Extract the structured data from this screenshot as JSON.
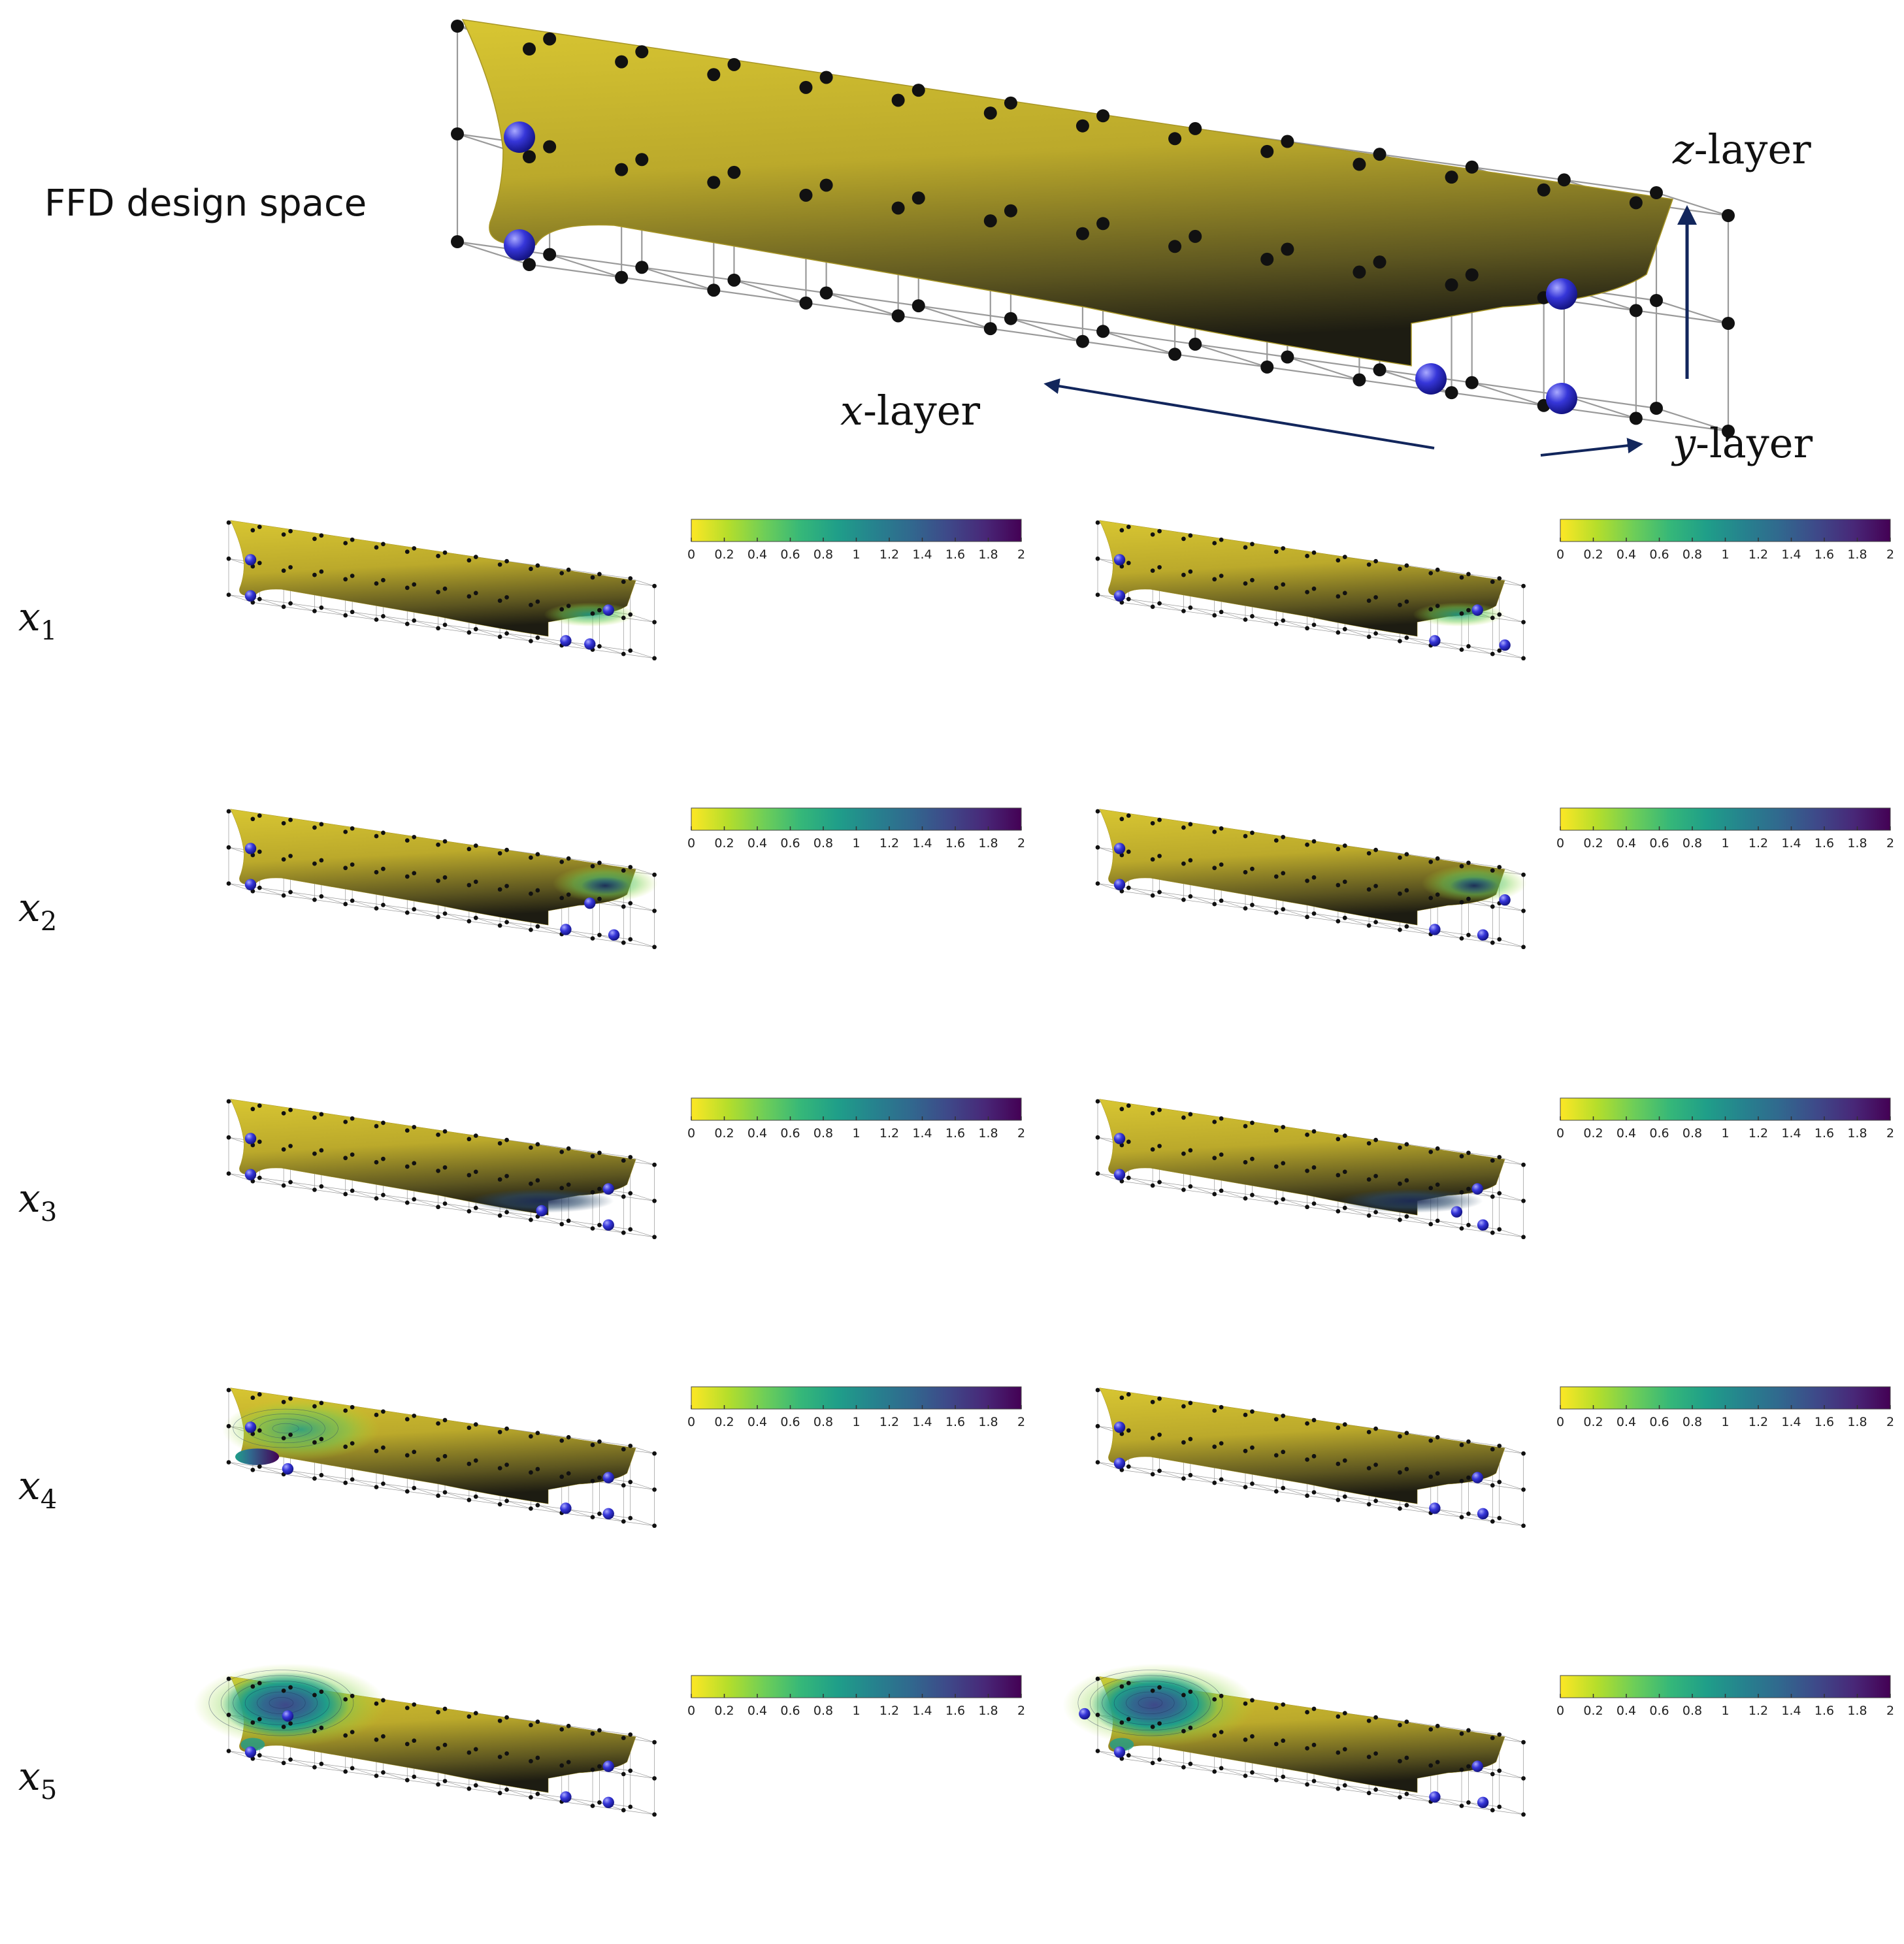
{
  "header": {
    "title": "FFD design space",
    "z_label": {
      "var": "z",
      "suffix": "-layer"
    },
    "x_label": {
      "var": "x",
      "suffix": "-layer"
    },
    "y_label": {
      "var": "y",
      "suffix": "-layer"
    }
  },
  "colorbar": {
    "ticks": [
      "0",
      "0.2",
      "0.4",
      "0.6",
      "0.8",
      "1",
      "1.2",
      "1.4",
      "1.6",
      "1.8",
      "2"
    ],
    "colors": [
      "#fde725",
      "#b5de2b",
      "#6ece58",
      "#35b779",
      "#1f9e89",
      "#26828e",
      "#31688e",
      "#3e4989",
      "#482878",
      "#440154"
    ]
  },
  "rows": [
    {
      "var": "x",
      "sub": "1"
    },
    {
      "var": "x",
      "sub": "2"
    },
    {
      "var": "x",
      "sub": "3"
    },
    {
      "var": "x",
      "sub": "4"
    },
    {
      "var": "x",
      "sub": "5"
    }
  ],
  "colors": {
    "hull": "#c9b62e",
    "hull_shadow": "#262515",
    "arrow": "#12265c",
    "control_point": "#3535d8",
    "lattice_node": "#111111"
  }
}
